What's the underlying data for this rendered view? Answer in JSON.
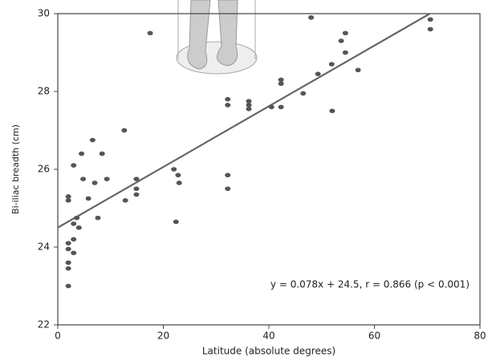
{
  "chart_data": {
    "type": "scatter",
    "x_label": "Latitude (absolute degrees)",
    "y_label": "Bi-iliac breadth (cm)",
    "annotation": "y =  0.078x + 24.5, r = 0.866 (p < 0.001)",
    "trendline": {
      "slope": 0.078,
      "intercept": 24.5
    },
    "color": "#555555",
    "xlim": [
      0,
      80
    ],
    "xticks": [
      0,
      20,
      40,
      60,
      80
    ],
    "ylim": [
      22,
      30
    ],
    "yticks": [
      22,
      24,
      26,
      28,
      30
    ],
    "x": [
      2,
      2,
      2,
      2,
      2,
      3,
      3,
      3,
      3.6,
      4,
      2,
      2,
      3,
      4.5,
      4.8,
      5.8,
      6.6,
      7,
      7.6,
      8.4,
      9.3,
      12.6,
      12.8,
      14.9,
      14.9,
      14.9,
      17.5,
      22,
      22.8,
      23,
      22.4,
      32.2,
      32.2,
      32.2,
      32.2,
      36.2,
      36.2,
      36.2,
      40.5,
      42.3,
      42.3,
      42.3,
      46.5,
      48,
      49.3,
      51.9,
      52,
      53.7,
      54.5,
      54.5,
      56.9,
      70.6,
      70.6
    ],
    "values": [
      23.0,
      23.45,
      23.6,
      23.95,
      24.1,
      23.85,
      24.2,
      24.6,
      24.75,
      24.5,
      25.2,
      25.3,
      26.1,
      26.4,
      25.75,
      25.25,
      26.75,
      25.65,
      24.75,
      26.4,
      25.75,
      27.0,
      25.2,
      25.75,
      25.5,
      25.35,
      29.5,
      26.0,
      25.85,
      25.65,
      24.65,
      27.8,
      27.65,
      25.85,
      25.5,
      27.75,
      27.65,
      27.55,
      27.6,
      28.3,
      28.2,
      27.6,
      27.95,
      29.9,
      28.45,
      28.7,
      27.5,
      29.3,
      29.5,
      29.0,
      28.55,
      29.85,
      29.6
    ]
  }
}
